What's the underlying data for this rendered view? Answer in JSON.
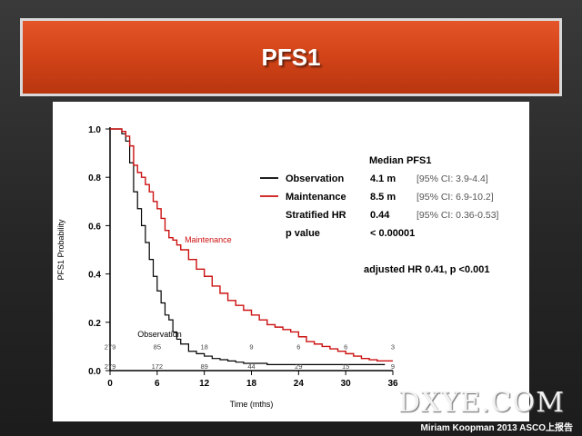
{
  "slide": {
    "title": "PFS1",
    "watermark": "DXYE.COM",
    "credit": "Miriam Koopman 2013 ASCO上报告"
  },
  "legend": {
    "header": "Median PFS1",
    "rows": [
      {
        "name": "Observation",
        "value": "4.1 m",
        "ci": "[95% CI: 3.9-4.4]",
        "color": "#000000"
      },
      {
        "name": "Maintenance",
        "value": "8.5 m",
        "ci": "[95% CI: 6.9-10.2]",
        "color": "#cc1111"
      },
      {
        "name": "Stratified HR",
        "value": "0.44",
        "ci": "[95% CI: 0.36-0.53]",
        "color": ""
      },
      {
        "name": "p value",
        "value": "< 0.00001",
        "ci": "",
        "color": ""
      }
    ],
    "adjusted": "adjusted HR 0.41, p <0.001"
  },
  "chart_data": {
    "type": "line",
    "title": "",
    "xlabel": "Time (mths)",
    "ylabel": "PFS1 Probability",
    "xlim": [
      0,
      36
    ],
    "ylim": [
      0,
      1.0
    ],
    "xticks": [
      "0",
      "6",
      "12",
      "18",
      "24",
      "30",
      "36"
    ],
    "yticks": [
      "0.0",
      "0.2",
      "0.4",
      "0.6",
      "0.8",
      "1.0"
    ],
    "grid": false,
    "series": [
      {
        "name": "Observation",
        "color": "#000000",
        "points": [
          [
            0,
            1.0
          ],
          [
            1,
            1.0
          ],
          [
            1.5,
            0.98
          ],
          [
            2,
            0.95
          ],
          [
            2.5,
            0.86
          ],
          [
            3,
            0.74
          ],
          [
            3.5,
            0.67
          ],
          [
            4,
            0.6
          ],
          [
            4.5,
            0.53
          ],
          [
            5,
            0.46
          ],
          [
            5.5,
            0.39
          ],
          [
            6,
            0.33
          ],
          [
            6.5,
            0.28
          ],
          [
            7,
            0.23
          ],
          [
            7.5,
            0.21
          ],
          [
            8,
            0.16
          ],
          [
            8.5,
            0.13
          ],
          [
            9,
            0.11
          ],
          [
            10,
            0.08
          ],
          [
            11,
            0.07
          ],
          [
            12,
            0.06
          ],
          [
            13,
            0.05
          ],
          [
            14,
            0.045
          ],
          [
            15,
            0.04
          ],
          [
            16,
            0.035
          ],
          [
            17,
            0.03
          ],
          [
            18,
            0.03
          ],
          [
            20,
            0.025
          ],
          [
            22,
            0.025
          ],
          [
            24,
            0.025
          ],
          [
            27,
            0.025
          ],
          [
            30,
            0.025
          ],
          [
            33,
            0.025
          ],
          [
            35,
            0.025
          ]
        ]
      },
      {
        "name": "Maintenance",
        "color": "#cc1111",
        "points": [
          [
            0,
            1.0
          ],
          [
            1,
            1.0
          ],
          [
            1.5,
            0.99
          ],
          [
            2,
            0.97
          ],
          [
            2.5,
            0.93
          ],
          [
            3,
            0.85
          ],
          [
            3.5,
            0.82
          ],
          [
            4,
            0.8
          ],
          [
            4.5,
            0.77
          ],
          [
            5,
            0.74
          ],
          [
            5.5,
            0.7
          ],
          [
            6,
            0.67
          ],
          [
            6.5,
            0.63
          ],
          [
            7,
            0.58
          ],
          [
            7.5,
            0.55
          ],
          [
            8,
            0.54
          ],
          [
            8.5,
            0.52
          ],
          [
            9,
            0.5
          ],
          [
            10,
            0.46
          ],
          [
            11,
            0.42
          ],
          [
            12,
            0.39
          ],
          [
            13,
            0.35
          ],
          [
            14,
            0.32
          ],
          [
            15,
            0.29
          ],
          [
            16,
            0.27
          ],
          [
            17,
            0.25
          ],
          [
            18,
            0.23
          ],
          [
            19,
            0.21
          ],
          [
            20,
            0.19
          ],
          [
            21,
            0.18
          ],
          [
            22,
            0.17
          ],
          [
            23,
            0.16
          ],
          [
            24,
            0.14
          ],
          [
            25,
            0.12
          ],
          [
            26,
            0.11
          ],
          [
            27,
            0.1
          ],
          [
            28,
            0.09
          ],
          [
            29,
            0.08
          ],
          [
            30,
            0.07
          ],
          [
            31,
            0.06
          ],
          [
            32,
            0.05
          ],
          [
            33,
            0.045
          ],
          [
            34,
            0.04
          ],
          [
            35,
            0.04
          ],
          [
            36,
            0.04
          ]
        ]
      }
    ],
    "annotations": [
      {
        "text": "Maintenance",
        "x": 9.5,
        "y": 0.53,
        "color": "#cc1111"
      },
      {
        "text": "Observation",
        "x": 3.5,
        "y": 0.14,
        "color": "#000000"
      }
    ],
    "at_risk": {
      "times": [
        0,
        6,
        12,
        18,
        24,
        30,
        36
      ],
      "rows": [
        {
          "name": "Observation",
          "values": [
            "279",
            "85",
            "18",
            "9",
            "6",
            "6",
            "3"
          ],
          "y": 0.08
        },
        {
          "name": "Maintenance",
          "values": [
            "279",
            "172",
            "89",
            "44",
            "29",
            "15",
            "9"
          ],
          "y": 0.0
        }
      ]
    }
  }
}
